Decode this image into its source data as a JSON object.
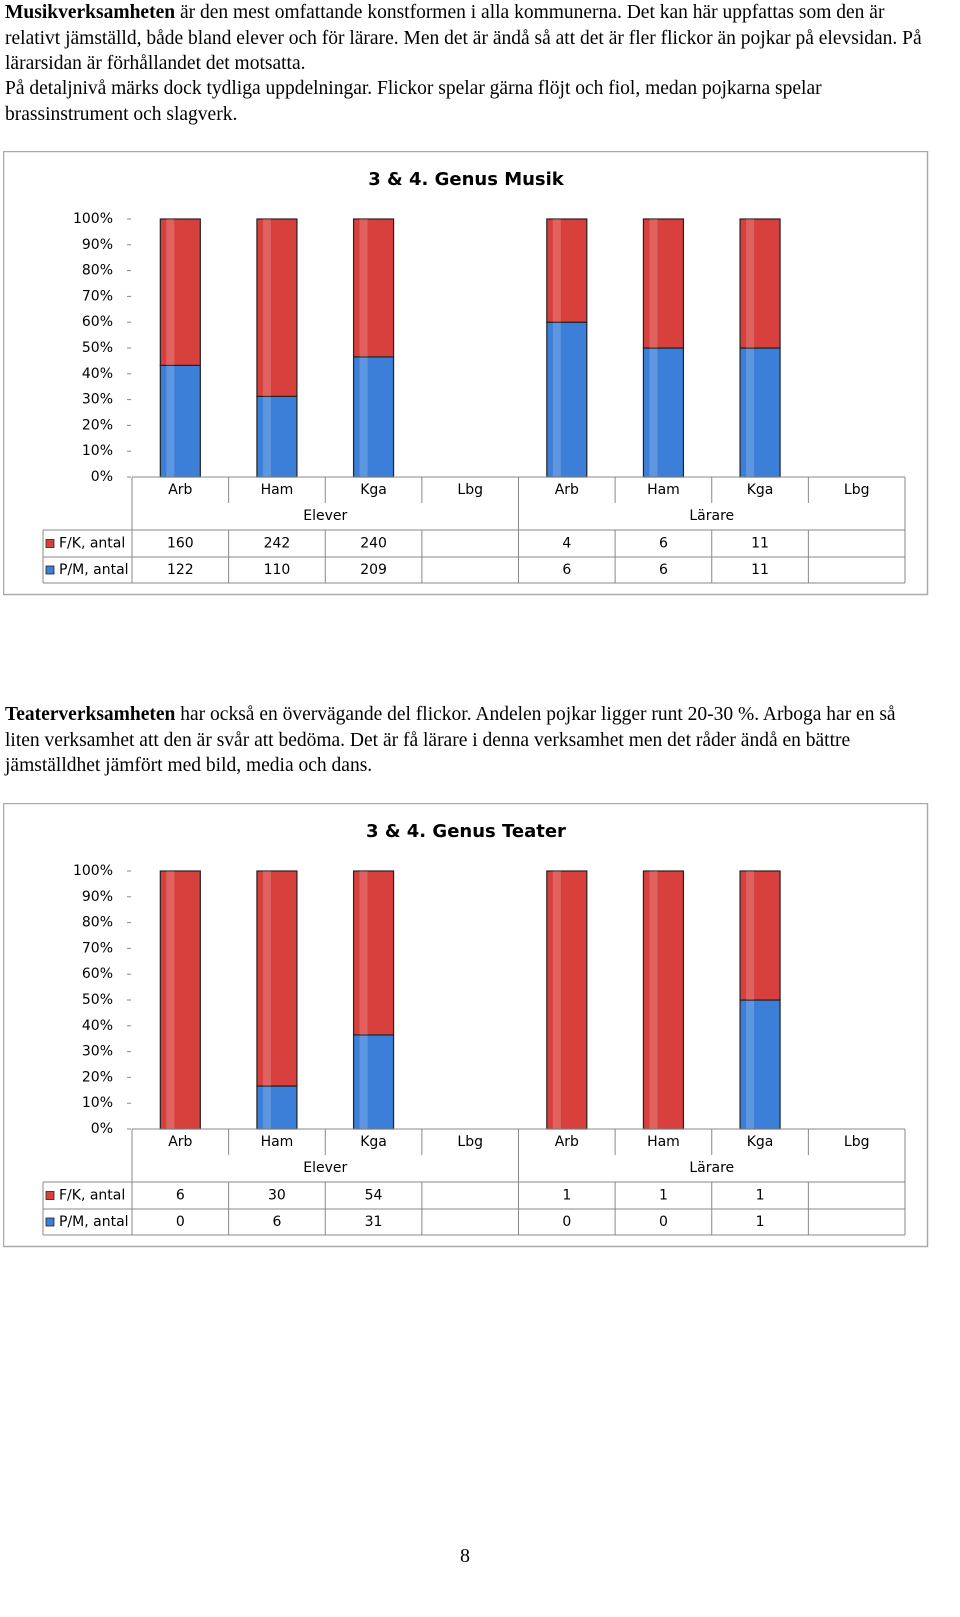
{
  "paragraphs": [
    {
      "bold": "Musikverksamheten",
      "text": " är den mest omfattande konstformen i alla kommunerna. Det kan här uppfattas som den är relativt jämställd, både bland elever och för lärare. Men det är ändå så att det är fler flickor än pojkar på elevsidan. På lärarsidan är förhållandet det motsatta."
    },
    {
      "text": "På detaljnivå märks dock tydliga uppdelningar. Flickor spelar gärna flöjt och fiol, medan pojkarna spelar brassinstrument och slagverk."
    },
    {
      "bold": "Teaterverksamheten",
      "text": " har också en övervägande del flickor. Andelen pojkar ligger runt 20-30 %. Arboga har en så liten verksamhet att den är svår att bedöma. Det är få lärare i denna verksamhet men det råder ändå en bättre jämställdhet jämfört med bild, media och dans."
    }
  ],
  "chart_data": [
    {
      "type": "bar",
      "stacking": "percent",
      "title": "3 & 4. Genus Musik",
      "groups": [
        {
          "name": "Elever",
          "categories": [
            "Arb",
            "Ham",
            "Kga",
            "Lbg"
          ]
        },
        {
          "name": "Lärare",
          "categories": [
            "Arb",
            "Ham",
            "Kga",
            "Lbg"
          ]
        }
      ],
      "series": [
        {
          "name": "F/K, antal",
          "color": "#d8403e",
          "values": [
            160,
            242,
            240,
            null,
            4,
            6,
            11,
            null
          ]
        },
        {
          "name": "P/M, antal",
          "color": "#3b7fd8",
          "values": [
            122,
            110,
            209,
            null,
            6,
            6,
            11,
            null
          ]
        }
      ],
      "ylim": [
        0,
        100
      ],
      "yticks": [
        {
          "value": 0,
          "label": "0%"
        },
        {
          "value": 10,
          "label": "10%"
        },
        {
          "value": 20,
          "label": "20%"
        },
        {
          "value": 30,
          "label": "30%"
        },
        {
          "value": 40,
          "label": "40%"
        },
        {
          "value": 50,
          "label": "50%"
        },
        {
          "value": 60,
          "label": "60%"
        },
        {
          "value": 70,
          "label": "70%"
        },
        {
          "value": 80,
          "label": "80%"
        },
        {
          "value": 90,
          "label": "90%"
        },
        {
          "value": 100,
          "label": "100%"
        }
      ]
    },
    {
      "type": "bar",
      "stacking": "percent",
      "title": "3 & 4. Genus Teater",
      "groups": [
        {
          "name": "Elever",
          "categories": [
            "Arb",
            "Ham",
            "Kga",
            "Lbg"
          ]
        },
        {
          "name": "Lärare",
          "categories": [
            "Arb",
            "Ham",
            "Kga",
            "Lbg"
          ]
        }
      ],
      "series": [
        {
          "name": "F/K, antal",
          "color": "#d8403e",
          "values": [
            6,
            30,
            54,
            null,
            1,
            1,
            1,
            null
          ]
        },
        {
          "name": "P/M, antal",
          "color": "#3b7fd8",
          "values": [
            0,
            6,
            31,
            null,
            0,
            0,
            1,
            null
          ]
        }
      ],
      "ylim": [
        0,
        100
      ],
      "yticks": [
        {
          "value": 0,
          "label": "0%"
        },
        {
          "value": 10,
          "label": "10%"
        },
        {
          "value": 20,
          "label": "20%"
        },
        {
          "value": 30,
          "label": "30%"
        },
        {
          "value": 40,
          "label": "40%"
        },
        {
          "value": 50,
          "label": "50%"
        },
        {
          "value": 60,
          "label": "60%"
        },
        {
          "value": 70,
          "label": "70%"
        },
        {
          "value": 80,
          "label": "80%"
        },
        {
          "value": 90,
          "label": "90%"
        },
        {
          "value": 100,
          "label": "100%"
        }
      ]
    }
  ],
  "page_number": "8"
}
